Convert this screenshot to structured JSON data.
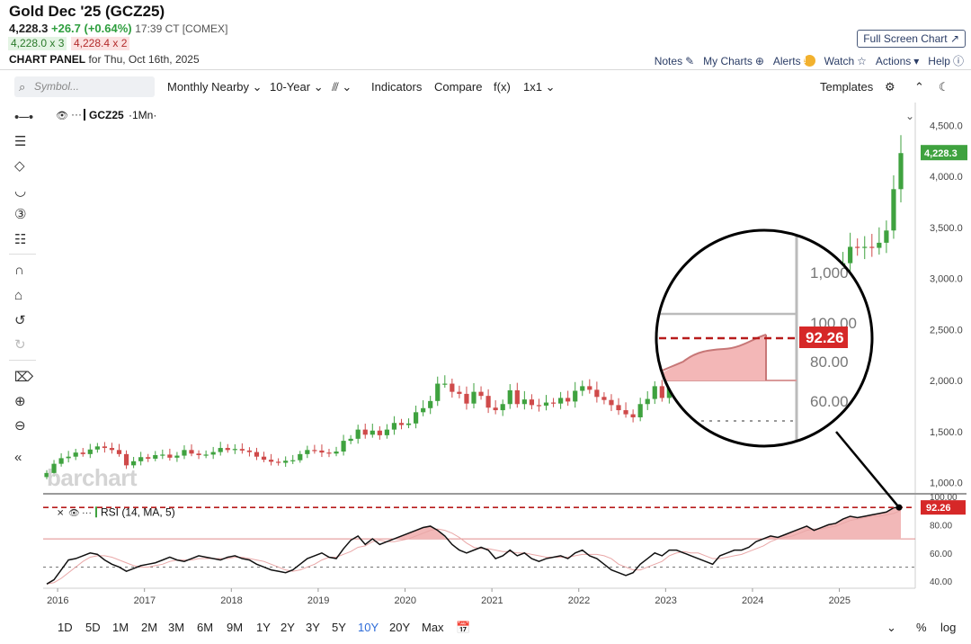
{
  "header": {
    "title": "Gold Dec '25 (GCZ25)",
    "last": "4,228.3",
    "change": "+26.7 (+0.64%)",
    "time": "17:39 CT [COMEX]",
    "bid": "4,228.0 x 3",
    "ask": "4,228.4 x 2",
    "panel_label": "CHART PANEL",
    "panel_date": "for Thu, Oct 16th, 2025",
    "fullscreen": "Full Screen Chart"
  },
  "toplinks": {
    "notes": "Notes",
    "mycharts": "My Charts",
    "alerts": "Alerts",
    "watch": "Watch",
    "actions": "Actions",
    "help": "Help"
  },
  "toolbar": {
    "symbol_placeholder": "Symbol...",
    "aggregation": "Monthly Nearby",
    "period": "10-Year",
    "indicators": "Indicators",
    "compare": "Compare",
    "fx": "f(x)",
    "layout": "1x1",
    "templates": "Templates"
  },
  "legend": {
    "symbol": "GCZ25",
    "interval": "·1Mn·",
    "rsi": "RSI (14, MA, 5)"
  },
  "watermark": "barchart",
  "bottombar": {
    "ranges": [
      "1D",
      "5D",
      "1M",
      "2M",
      "3M",
      "6M",
      "9M",
      "1Y",
      "2Y",
      "3Y",
      "5Y",
      "10Y",
      "20Y",
      "Max"
    ],
    "active": "10Y",
    "percent": "%",
    "log": "log"
  },
  "colors": {
    "up": "#3fa23f",
    "down": "#cf4a4a",
    "price_tag": "#3fa23f",
    "rsi_tag": "#d62828",
    "rsi_fill": "#f2b8b8",
    "accent": "#2d6bd8"
  },
  "magnifier": {
    "labels": [
      "1,000",
      "100.00",
      "80.00",
      "60.00"
    ],
    "value_tag": "92.26"
  },
  "chart_data": [
    {
      "type": "candlestick",
      "title": "GCZ25",
      "x_ticks": [
        "2016",
        "2017",
        "2018",
        "2019",
        "2020",
        "2021",
        "2022",
        "2023",
        "2024",
        "2025"
      ],
      "y_ticks": [
        "4,500.0",
        "4,000.0",
        "3,500.0",
        "3,000.0",
        "2,500.0",
        "2,000.0",
        "1,500.0",
        "1,000.0"
      ],
      "ylim": [
        900,
        4600
      ],
      "last_value_label": "4,228.3",
      "monthly_close": [
        1095,
        1185,
        1240,
        1255,
        1295,
        1280,
        1325,
        1355,
        1340,
        1320,
        1280,
        1170,
        1210,
        1250,
        1235,
        1270,
        1275,
        1245,
        1265,
        1320,
        1285,
        1270,
        1275,
        1300,
        1340,
        1320,
        1330,
        1315,
        1300,
        1255,
        1225,
        1205,
        1195,
        1215,
        1220,
        1280,
        1320,
        1315,
        1295,
        1285,
        1305,
        1410,
        1430,
        1520,
        1470,
        1510,
        1465,
        1520,
        1585,
        1565,
        1580,
        1690,
        1730,
        1800,
        1970,
        1970,
        1890,
        1870,
        1775,
        1890,
        1850,
        1735,
        1710,
        1770,
        1905,
        1770,
        1815,
        1760,
        1755,
        1785,
        1775,
        1830,
        1795,
        1900,
        1945,
        1910,
        1840,
        1810,
        1760,
        1710,
        1670,
        1640,
        1770,
        1820,
        1945,
        1830,
        1985,
        1990,
        1970,
        1920,
        1945,
        1975,
        1870,
        1995,
        2060,
        2035,
        2060,
        2090,
        2260,
        2340,
        2330,
        2345,
        2425,
        2475,
        2520,
        2660,
        2745,
        2670,
        2860,
        2840,
        3150,
        3310,
        3300,
        3310,
        3300,
        3350,
        3470,
        3875,
        4228
      ]
    },
    {
      "type": "line",
      "title": "RSI (14, MA, 5)",
      "y_ticks": [
        "100.00",
        "80.00",
        "60.00",
        "40.00"
      ],
      "ylim": [
        35,
        100
      ],
      "last_value_label": "92.26",
      "reference_line": 92.26,
      "levels": [
        70,
        50
      ],
      "values": [
        38,
        41,
        48,
        55,
        56,
        58,
        60,
        59,
        55,
        52,
        50,
        47,
        49,
        51,
        52,
        53,
        55,
        57,
        55,
        54,
        56,
        58,
        57,
        56,
        55,
        57,
        58,
        56,
        55,
        52,
        50,
        48,
        47,
        46,
        48,
        52,
        56,
        58,
        60,
        57,
        56,
        63,
        69,
        72,
        66,
        70,
        66,
        68,
        70,
        72,
        74,
        76,
        78,
        79,
        76,
        72,
        66,
        62,
        60,
        62,
        64,
        62,
        56,
        58,
        62,
        58,
        60,
        56,
        54,
        56,
        57,
        58,
        56,
        60,
        62,
        58,
        56,
        52,
        48,
        46,
        44,
        46,
        52,
        56,
        60,
        58,
        62,
        62,
        60,
        58,
        56,
        54,
        52,
        58,
        60,
        62,
        62,
        64,
        68,
        70,
        72,
        71,
        73,
        75,
        77,
        79,
        76,
        78,
        80,
        81,
        84,
        86,
        85,
        86,
        87,
        88,
        89,
        92,
        92.26
      ],
      "ma5": [
        38,
        39,
        42,
        46,
        50,
        54,
        57,
        58,
        58,
        57,
        55,
        53,
        51,
        50,
        50,
        51,
        52,
        54,
        55,
        55,
        55,
        56,
        56,
        56,
        56,
        56,
        57,
        57,
        56,
        55,
        54,
        52,
        50,
        48,
        47,
        48,
        50,
        52,
        55,
        57,
        57,
        59,
        61,
        64,
        65,
        68,
        69,
        68,
        68,
        69,
        70,
        72,
        74,
        76,
        77,
        76,
        74,
        71,
        67,
        64,
        63,
        63,
        62,
        61,
        61,
        60,
        60,
        59,
        58,
        57,
        57,
        57,
        57,
        58,
        59,
        59,
        59,
        58,
        56,
        52,
        50,
        48,
        48,
        50,
        52,
        54,
        58,
        60,
        61,
        60,
        60,
        58,
        56,
        56,
        57,
        58,
        59,
        61,
        63,
        65,
        68,
        70,
        71,
        72,
        74,
        76,
        77,
        77,
        78,
        79,
        81,
        83,
        84,
        85,
        86,
        86,
        87,
        88,
        90
      ]
    }
  ]
}
